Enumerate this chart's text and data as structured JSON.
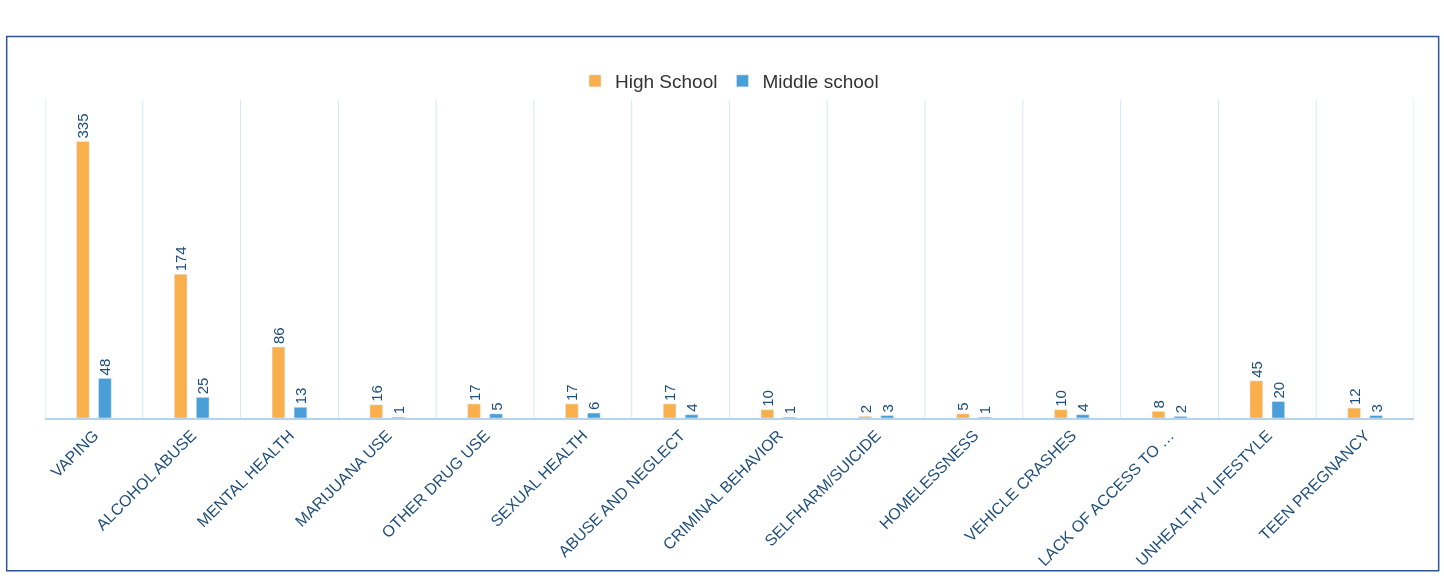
{
  "chart_data": {
    "type": "bar",
    "categories": [
      "VAPING",
      "ALCOHOL ABUSE",
      "MENTAL HEALTH",
      "MARIJUANA USE",
      "OTHER DRUG USE",
      "SEXUAL HEALTH",
      "ABUSE AND NEGLECT",
      "CRIMINAL BEHAVIOR",
      "SELFHARM/SUICIDE",
      "HOMELESSNESS",
      "VEHICLE CRASHES",
      "LACK OF ACCESS TO …",
      "UNHEALTHY LIFESTYLE",
      "TEEN PREGNANCY"
    ],
    "series": [
      {
        "name": "High School",
        "color": "#f9b04c",
        "values": [
          335,
          174,
          86,
          16,
          17,
          17,
          17,
          10,
          2,
          5,
          10,
          8,
          45,
          12
        ]
      },
      {
        "name": "Middle school",
        "color": "#4a9fd8",
        "values": [
          48,
          25,
          13,
          1,
          5,
          6,
          4,
          1,
          3,
          1,
          4,
          2,
          20,
          3
        ]
      }
    ],
    "data_labels": true,
    "grid": "x",
    "legend": "top"
  }
}
